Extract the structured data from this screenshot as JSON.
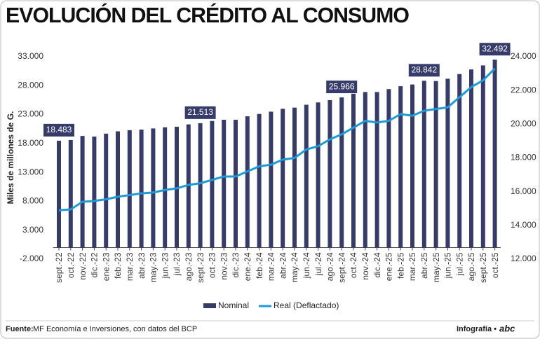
{
  "chart_data": {
    "type": "bar",
    "title": "EVOLUCIÓN DEL CRÉDITO AL CONSUMO",
    "y_label": "Miles de millones de G.",
    "source_label": "Fuente:",
    "source": "MF Economía e Inversiones, con datos del BCP",
    "credit": "Infografía •",
    "logo": "abc",
    "categories": [
      "sept.-22",
      "oct.-22",
      "nov.-22",
      "dic.-22",
      "ene.-23",
      "feb.-23",
      "mar.-23",
      "abr.-23",
      "may.-23",
      "jun.-23",
      "jul.-23",
      "ago.-23",
      "sept.-23",
      "oct.-23",
      "nov.-23",
      "dic.-23",
      "ene.-24",
      "feb.-24",
      "mar.-24",
      "abr.-24",
      "may.-24",
      "jun.-24",
      "jul.-24",
      "ago.-24",
      "sept.-24",
      "oct.-24",
      "nov.-24",
      "dic.-24",
      "ene.-25",
      "feb.-25",
      "mar.-25",
      "abr.-25",
      "may.-25",
      "jun.-25",
      "jul.-25",
      "ago.-25",
      "sept.-25",
      "oct.-25"
    ],
    "series": [
      {
        "name": "Nominal",
        "type": "bar",
        "color": "#363b6a",
        "values": [
          18483,
          18600,
          19300,
          19200,
          19700,
          20100,
          20300,
          20400,
          20600,
          20800,
          20900,
          21300,
          21513,
          21900,
          22100,
          22100,
          22700,
          23100,
          23500,
          24000,
          24200,
          24700,
          25100,
          25500,
          25966,
          26600,
          26900,
          26900,
          27400,
          27900,
          28200,
          28842,
          28800,
          29200,
          30000,
          30800,
          31500,
          32492
        ],
        "value_labels": [
          "18.483",
          null,
          null,
          null,
          null,
          null,
          null,
          null,
          null,
          null,
          null,
          null,
          "21.513",
          null,
          null,
          null,
          null,
          null,
          null,
          null,
          null,
          null,
          null,
          null,
          "25.966",
          null,
          null,
          null,
          null,
          null,
          null,
          "28.842",
          null,
          null,
          null,
          null,
          null,
          "32.492"
        ]
      },
      {
        "name": "Real (Deflactado)",
        "type": "line",
        "axis": "y2",
        "color": "#1f9ad6",
        "values": [
          14900,
          14950,
          15400,
          15450,
          15550,
          15700,
          15800,
          15900,
          15950,
          16100,
          16200,
          16400,
          16500,
          16700,
          16900,
          16900,
          17200,
          17500,
          17600,
          17900,
          18000,
          18500,
          18700,
          19100,
          19400,
          19800,
          20200,
          20100,
          20200,
          20600,
          20500,
          20800,
          20900,
          21000,
          21600,
          22200,
          22600,
          23300
        ]
      }
    ],
    "ylim": [
      -2000,
      33000
    ],
    "yticks": [
      {
        "value": -2000,
        "label": "-2.000"
      },
      {
        "value": 3000,
        "label": "3.000"
      },
      {
        "value": 8000,
        "label": "8.000"
      },
      {
        "value": 13000,
        "label": "13.000"
      },
      {
        "value": 18000,
        "label": "18.000"
      },
      {
        "value": 23000,
        "label": "23.000"
      },
      {
        "value": 28000,
        "label": "28.000"
      },
      {
        "value": 33000,
        "label": "33.000"
      }
    ],
    "y2lim": [
      12000,
      24000
    ],
    "y2ticks": [
      {
        "value": 12000,
        "label": "12.000"
      },
      {
        "value": 14000,
        "label": "14.000"
      },
      {
        "value": 16000,
        "label": "16.000"
      },
      {
        "value": 18000,
        "label": "18.000"
      },
      {
        "value": 20000,
        "label": "20.000"
      },
      {
        "value": 22000,
        "label": "22.000"
      },
      {
        "value": 24000,
        "label": "24.000"
      }
    ],
    "legend": "bottom"
  }
}
